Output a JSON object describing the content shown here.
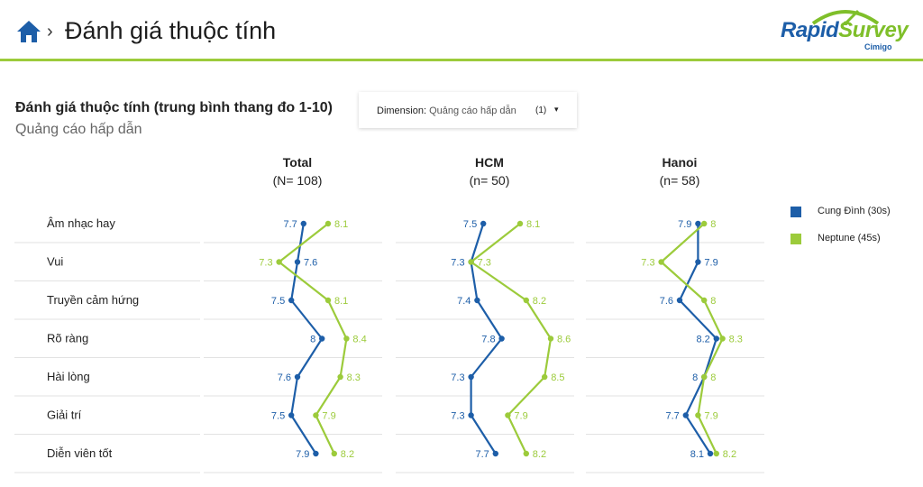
{
  "header": {
    "title": "Đánh giá thuộc tính",
    "breadcrumb_separator": "›",
    "logo": {
      "word1": "Rapid",
      "word2": "Survey",
      "sub": "Cimigo"
    },
    "accent_color": "#9ccb3b"
  },
  "dimension": {
    "label": "Dimension:",
    "value": "Quảng cáo hấp dẫn",
    "count": "(1)",
    "caret": "▾"
  },
  "chart_data": {
    "type": "line",
    "title": "Đánh giá thuộc tính (trung bình thang đo 1-10)",
    "subtitle": "Quảng cáo hấp dẫn",
    "categories": [
      "Âm nhạc hay",
      "Vui",
      "Truyền cảm hứng",
      "Rõ ràng",
      "Hài lòng",
      "Giải trí",
      "Diễn viên tốt"
    ],
    "legend_placement": "right",
    "panels": [
      {
        "title": "Total",
        "base": "(N= 108)",
        "series": [
          {
            "name": "Cung Đình (30s)",
            "color": "#1d5ea8",
            "values": [
              7.7,
              7.6,
              7.5,
              8,
              7.6,
              7.5,
              7.9
            ]
          },
          {
            "name": "Neptune (45s)",
            "color": "#9ccb3b",
            "values": [
              8.1,
              7.3,
              8.1,
              8.4,
              8.3,
              7.9,
              8.2
            ]
          }
        ]
      },
      {
        "title": "HCM",
        "base": "(n= 50)",
        "series": [
          {
            "name": "Cung Đình (30s)",
            "color": "#1d5ea8",
            "values": [
              7.5,
              7.3,
              7.4,
              7.8,
              7.3,
              7.3,
              7.7
            ]
          },
          {
            "name": "Neptune (45s)",
            "color": "#9ccb3b",
            "values": [
              8.1,
              7.3,
              8.2,
              8.6,
              8.5,
              7.9,
              8.2
            ]
          }
        ]
      },
      {
        "title": "Hanoi",
        "base": "(n= 58)",
        "series": [
          {
            "name": "Cung Đình (30s)",
            "color": "#1d5ea8",
            "values": [
              7.9,
              7.9,
              7.6,
              8.2,
              8,
              7.7,
              8.1
            ]
          },
          {
            "name": "Neptune (45s)",
            "color": "#9ccb3b",
            "values": [
              8,
              7.3,
              8,
              8.3,
              8,
              7.9,
              8.2
            ]
          }
        ]
      }
    ],
    "legend": [
      {
        "name": "Cung Đình (30s)",
        "color": "#1d5ea8"
      },
      {
        "name": "Neptune (45s)",
        "color": "#9ccb3b"
      }
    ]
  }
}
